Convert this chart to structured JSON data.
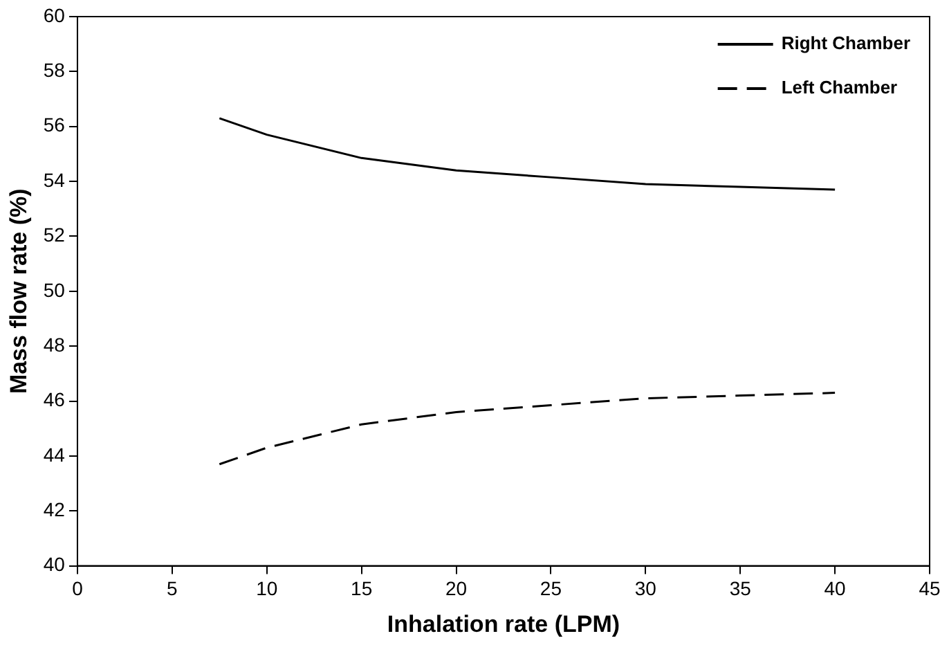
{
  "chart_data": {
    "type": "line",
    "xlabel": "Inhalation rate (LPM)",
    "ylabel": "Mass flow rate (%)",
    "x": [
      7.5,
      10,
      15,
      20,
      25,
      30,
      35,
      40
    ],
    "series": [
      {
        "name": "Right Chamber",
        "color": "#000000",
        "line_style": "solid",
        "values": [
          56.3,
          55.7,
          54.85,
          54.4,
          54.15,
          53.9,
          53.8,
          53.7
        ]
      },
      {
        "name": "Left Chamber",
        "color": "#000000",
        "line_style": "dashed",
        "values": [
          43.7,
          44.3,
          45.15,
          45.6,
          45.85,
          46.1,
          46.2,
          46.3
        ]
      }
    ],
    "xlim": [
      0,
      45
    ],
    "xticks": [
      0,
      5,
      10,
      15,
      20,
      25,
      30,
      35,
      40,
      45
    ],
    "ylim": [
      40,
      60
    ],
    "yticks": [
      40,
      42,
      44,
      46,
      48,
      50,
      52,
      54,
      56,
      58,
      60
    ],
    "grid": false,
    "legend": "top right",
    "marker": "none"
  }
}
